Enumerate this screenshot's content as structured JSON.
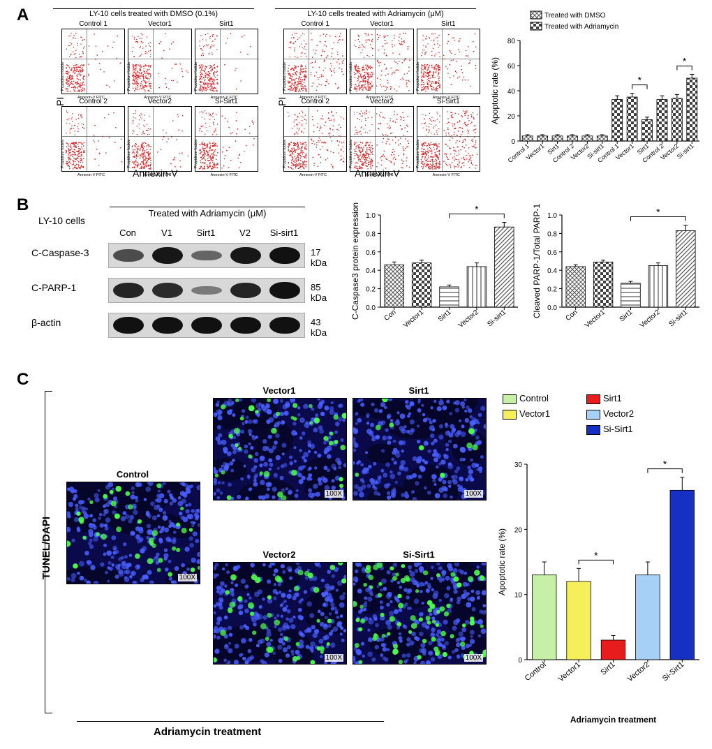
{
  "panelA": {
    "label": "A",
    "left_block": {
      "title": "LY-10 cells treated with DMSO (0.1%)",
      "plots": [
        "Control 1",
        "Vector1",
        "Sirt1",
        "Control 2",
        "Vector2",
        "Si-Sirt1"
      ],
      "y_axis": "PI",
      "x_axis": "Annexin-V"
    },
    "right_block": {
      "title": "LY-10 cells treated with Adriamycin (μM)",
      "plots": [
        "Control 1",
        "Vector1",
        "Sirt1",
        "Control 2",
        "Vector2",
        "Si-Sirt1"
      ],
      "y_axis": "PI",
      "x_axis": "Annexin-V"
    },
    "flow_plot_style": {
      "point_color": "#e02020",
      "axis_ticks": [
        "10^0",
        "10^1",
        "10^2",
        "10^3",
        "10^4"
      ],
      "y_axis_small": "Propidium Iodide",
      "x_axis_small": "Annexin-V FITC"
    },
    "bar": {
      "legend": [
        {
          "label": "Treated with DMSO",
          "fill": "crosshatch",
          "color": "#555"
        },
        {
          "label": "Treated with Adriamycin",
          "fill": "check",
          "color": "#333"
        }
      ],
      "y_label": "Apoptotic rate (%)",
      "ylim": [
        0,
        80
      ],
      "ytick_step": 20,
      "categories": [
        "Control 1",
        "Vector1",
        "Sirt1",
        "Control 2",
        "Vector2",
        "Si-sirt1",
        "Control 1",
        "Vector1",
        "Sirt1",
        "Control 2",
        "Vector2",
        "Si-sirt1"
      ],
      "values": [
        4,
        4,
        4,
        4,
        4,
        4,
        33,
        35,
        17,
        33,
        34,
        50
      ],
      "patterns": [
        "hatch",
        "hatch",
        "hatch",
        "hatch",
        "hatch",
        "hatch",
        "check",
        "check",
        "check",
        "check",
        "check",
        "check"
      ],
      "errors": [
        1,
        1,
        1,
        1,
        1,
        1,
        3,
        3,
        2,
        3,
        3,
        3
      ],
      "sig_pairs": [
        [
          8,
          9
        ],
        [
          11,
          12
        ]
      ],
      "sig_label": "*",
      "bar_color": "#404040",
      "background_color": "#ffffff",
      "grid_color": "#000000",
      "font_size": 10
    }
  },
  "panelB": {
    "label": "B",
    "cell_line": "LY-10 cells",
    "treatment_header": "Treated with Adriamycin (μM)",
    "lanes": [
      "Con",
      "V1",
      "Sirt1",
      "V2",
      "Si-sirt1"
    ],
    "rows": [
      {
        "name": "C-Caspase-3",
        "mw": "17 kDa",
        "intensities": [
          0.55,
          0.95,
          0.35,
          0.95,
          1.0
        ]
      },
      {
        "name": "C-PARP-1",
        "mw": "85 kDa",
        "intensities": [
          0.85,
          0.8,
          0.2,
          0.85,
          1.0
        ]
      },
      {
        "name": "β-actin",
        "mw": "43 kDa",
        "intensities": [
          1.0,
          1.0,
          1.0,
          1.0,
          1.0
        ]
      }
    ],
    "chart1": {
      "y_label": "C-Caspase3 protein expression",
      "categories": [
        "Con",
        "Vector1",
        "Sirt1",
        "Vector2",
        "Si-sirt1"
      ],
      "values": [
        0.46,
        0.48,
        0.22,
        0.44,
        0.87
      ],
      "errors": [
        0.03,
        0.03,
        0.02,
        0.04,
        0.05
      ],
      "ylim": [
        0,
        1.0
      ],
      "ytick_step": 0.2,
      "bar_fill": "pattern",
      "bar_color": "#555",
      "sig_pairs": [
        [
          3,
          5
        ]
      ],
      "sig_label": "*"
    },
    "chart2": {
      "y_label": "Cleaved PARP-1/Total PARP-1",
      "categories": [
        "Con",
        "Vector1",
        "Sirt1",
        "Vector2",
        "Si-sirt1"
      ],
      "values": [
        0.44,
        0.49,
        0.26,
        0.45,
        0.83
      ],
      "errors": [
        0.02,
        0.02,
        0.02,
        0.03,
        0.06
      ],
      "ylim": [
        0,
        1.0
      ],
      "ytick_step": 0.2,
      "bar_fill": "pattern",
      "bar_color": "#555",
      "sig_pairs": [
        [
          3,
          5
        ]
      ],
      "sig_label": "*"
    }
  },
  "panelC": {
    "label": "C",
    "side_label": "TUNEL/DAPI",
    "bottom_label": "Adriamycin  treatment",
    "images": [
      {
        "label": "Control",
        "mag": "100X",
        "green_density": 0.2
      },
      {
        "label": "Vector1",
        "mag": "100X",
        "green_density": 0.2
      },
      {
        "label": "Sirt1",
        "mag": "100X",
        "green_density": 0.05
      },
      {
        "label": "Vector2",
        "mag": "100X",
        "green_density": 0.22
      },
      {
        "label": "Si-Sirt1",
        "mag": "100X",
        "green_density": 0.45
      }
    ],
    "image_style": {
      "bg": "#0a0a4a",
      "dapi": "#4a60ff",
      "tunel": "#4cff4c"
    },
    "legend": [
      {
        "label": "Control",
        "color": "#c6f0a6"
      },
      {
        "label": "Vector1",
        "color": "#f5f05a"
      },
      {
        "label": "Sirt1",
        "color": "#e81c1c"
      },
      {
        "label": "Vector2",
        "color": "#a6d0f5"
      },
      {
        "label": "Si-Sirt1",
        "color": "#1730c4"
      }
    ],
    "chart": {
      "y_label": "Apoptotic rate (%)",
      "x_label": "Adriamycin treatment",
      "categories": [
        "Control",
        "Vector1",
        "Sirt1",
        "Vector2",
        "Si-Sirt1"
      ],
      "values": [
        13,
        12,
        3,
        13,
        26
      ],
      "errors": [
        2,
        2,
        0.7,
        2,
        2
      ],
      "colors": [
        "#c6f0a6",
        "#f5f05a",
        "#e81c1c",
        "#a6d0f5",
        "#1730c4"
      ],
      "ylim": [
        0,
        30
      ],
      "ytick_step": 10,
      "sig_pairs": [
        [
          2,
          3
        ],
        [
          4,
          5
        ]
      ],
      "sig_label": "*"
    }
  },
  "style": {
    "text_color": "#000000",
    "label_font_size": 24,
    "axis_font_size": 11,
    "small_font_size": 10
  }
}
